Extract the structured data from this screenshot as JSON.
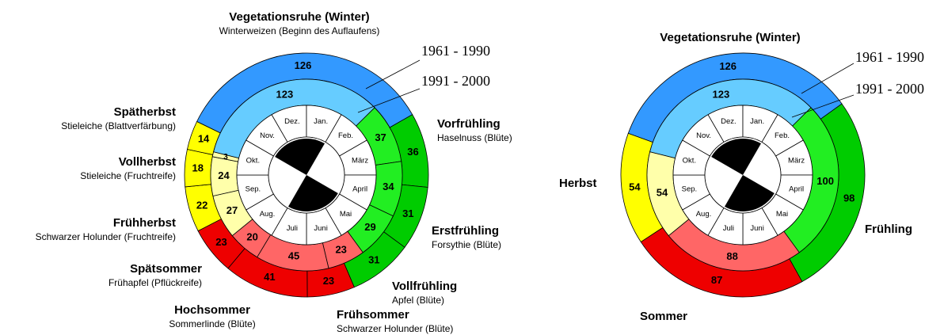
{
  "chart_data": [
    {
      "type": "pie",
      "categories": [
        "Vegetationsruhe (Winter)",
        "Vorfrühling",
        "Erstfrühling",
        "Vollfrühling",
        "Frühsommer",
        "Hochsommer",
        "Spätsommer",
        "Frühherbst",
        "Vollherbst",
        "Spätherbst"
      ],
      "category_notes": [
        "Winterweizen (Beginn des Auflaufens)",
        "Haselnuss (Blüte)",
        "Forsythie (Blüte)",
        "Apfel (Blüte)",
        "Schwarzer Holunder (Blüte)",
        "Sommerlinde (Blüte)",
        "Frühapfel (Pflückreife)",
        "Schwarzer Holunder (Fruchtreife)",
        "Stieleiche (Fruchtreife)",
        "Stieleiche (Blattverfärbung)"
      ],
      "series": [
        {
          "name": "1961 - 1990",
          "colors": [
            "#3399ff",
            "#00cc00",
            "#00cc00",
            "#00cc00",
            "#ee0000",
            "#ee0000",
            "#ee0000",
            "#ffff00",
            "#ffff00",
            "#ffff00"
          ],
          "values": [
            126,
            36,
            31,
            31,
            23,
            41,
            23,
            22,
            18,
            14
          ]
        },
        {
          "name": "1991 - 2000",
          "colors": [
            "#66ccff",
            "#22ee22",
            "#22ee22",
            "#22ee22",
            "#ff6666",
            "#ff6666",
            "#ff6666",
            "#ffffaa",
            "#ffffaa",
            "#ffffaa"
          ],
          "values": [
            123,
            37,
            34,
            29,
            23,
            45,
            20,
            27,
            24,
            3
          ]
        }
      ],
      "months": [
        "Dez.",
        "Jan.",
        "Feb.",
        "März",
        "April",
        "Mai",
        "Juni",
        "Juli",
        "Aug.",
        "Sep.",
        "Okt.",
        "Nov."
      ]
    },
    {
      "type": "pie",
      "categories": [
        "Vegetationsruhe (Winter)",
        "Frühling",
        "Sommer",
        "Herbst"
      ],
      "series": [
        {
          "name": "1961 - 1990",
          "colors": [
            "#3399ff",
            "#00cc00",
            "#ee0000",
            "#ffff00"
          ],
          "values": [
            126,
            98,
            87,
            54
          ]
        },
        {
          "name": "1991 - 2000",
          "colors": [
            "#66ccff",
            "#22ee22",
            "#ff6666",
            "#ffffaa"
          ],
          "values": [
            123,
            100,
            88,
            54
          ]
        }
      ],
      "months": [
        "Dez.",
        "Jan.",
        "Feb.",
        "März",
        "April",
        "Mai",
        "Juni",
        "Juli",
        "Aug.",
        "Sep.",
        "Okt.",
        "Nov."
      ]
    }
  ]
}
